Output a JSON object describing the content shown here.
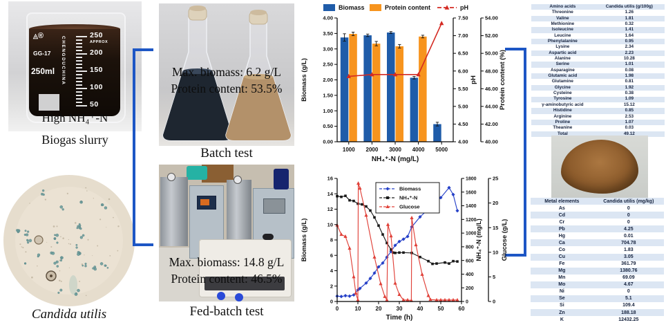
{
  "left_column": {
    "beaker": {
      "inner_label": "High NH₄⁺-N",
      "caption": "Biogas slurry",
      "volume": "250ml",
      "brand": "GG-17",
      "registered": "®",
      "vertical_text": "CHENGDUCHINA",
      "graduations": [
        {
          "label": "250",
          "sub": "APPROX"
        },
        {
          "label": "200",
          "sub": ""
        },
        {
          "label": "150",
          "sub": ""
        },
        {
          "label": "100",
          "sub": ""
        },
        {
          "label": "50",
          "sub": ""
        }
      ]
    },
    "microscopy": {
      "caption": "Candida utilis"
    }
  },
  "middle_column": {
    "batch": {
      "line1": "Max. biomass: 6.2 g/L",
      "line2": "Protein content: 53.5%",
      "caption": "Batch test"
    },
    "fed_batch": {
      "line1": "Max. biomass: 14.8 g/L",
      "line2": "Protein content: 46.5%",
      "caption": "Fed-batch test"
    }
  },
  "chart_data": [
    {
      "type": "bar",
      "categories": [
        "1000",
        "2000",
        "3000",
        "4000",
        "5000"
      ],
      "xlabel": "NH₄⁺-N (mg/L)",
      "legend_position": "top",
      "axes": {
        "left": {
          "label": "Biomass (g/L)",
          "min": 0,
          "max": 4,
          "step": 0.5
        },
        "ph": {
          "label": "pH",
          "min": 4,
          "max": 7.5,
          "step": 0.5
        },
        "protein": {
          "label": "Protein content (%)",
          "min": 40,
          "max": 54,
          "step": 2
        }
      },
      "series": [
        {
          "name": "Biomass",
          "type": "bar",
          "axis": "left",
          "color": "#1F5CA9",
          "values": [
            3.37,
            3.44,
            3.53,
            2.07,
            0.57
          ],
          "errors": [
            0.12,
            0.04,
            0.03,
            0.04,
            0.06
          ]
        },
        {
          "name": "Protein content",
          "type": "bar",
          "axis": "protein",
          "color": "#F7941E",
          "values": [
            52.2,
            51.1,
            50.8,
            51.9,
            null
          ],
          "errors": [
            0.2,
            0.25,
            0.2,
            0.15,
            null
          ]
        },
        {
          "name": "pH",
          "type": "line",
          "axis": "ph",
          "color": "#D42A22",
          "marker": "triangle",
          "values": [
            5.85,
            5.9,
            5.9,
            5.9,
            7.35
          ]
        }
      ]
    },
    {
      "type": "line",
      "xlabel": "Time (h)",
      "legend_position": "inside-top",
      "axes": {
        "x": {
          "min": 0,
          "max": 60,
          "step": 10
        },
        "left": {
          "label": "Biomass (g/L)",
          "min": 0,
          "max": 16,
          "step": 2
        },
        "nh4": {
          "label": "NH₄⁺-N (mg/L)",
          "min": 0,
          "max": 1800,
          "step": 200
        },
        "glucose": {
          "label": "Glucose (g/L)",
          "min": 0,
          "max": 25,
          "step": 5
        }
      },
      "series": [
        {
          "name": "Biomass",
          "axis": "left",
          "color": "#2641C8",
          "marker": "diamond",
          "points": [
            [
              0,
              0.7
            ],
            [
              2,
              0.65
            ],
            [
              4,
              0.75
            ],
            [
              6,
              0.7
            ],
            [
              8,
              0.85
            ],
            [
              10,
              1.5
            ],
            [
              11,
              1.7
            ],
            [
              14,
              2.4
            ],
            [
              16,
              3.0
            ],
            [
              18,
              3.7
            ],
            [
              20,
              4.5
            ],
            [
              22,
              5.0
            ],
            [
              24,
              5.75
            ],
            [
              26,
              6.5
            ],
            [
              28,
              7.3
            ],
            [
              30,
              7.8
            ],
            [
              32,
              8.1
            ],
            [
              34,
              8.45
            ],
            [
              36,
              9.7
            ],
            [
              40,
              11.0
            ],
            [
              44,
              12.0
            ],
            [
              46,
              12.6
            ],
            [
              50,
              13.5
            ],
            [
              54,
              14.8
            ],
            [
              56,
              13.9
            ],
            [
              58,
              11.8
            ]
          ]
        },
        {
          "name": "NH₄⁺-N",
          "axis": "nh4",
          "color": "#1A1A1A",
          "marker": "square",
          "points": [
            [
              0,
              1540
            ],
            [
              2,
              1530
            ],
            [
              4,
              1545
            ],
            [
              6,
              1480
            ],
            [
              8,
              1470
            ],
            [
              10,
              1430
            ],
            [
              12,
              1420
            ],
            [
              14,
              1390
            ],
            [
              16,
              1330
            ],
            [
              18,
              1230
            ],
            [
              20,
              1110
            ],
            [
              22,
              980
            ],
            [
              24,
              855
            ],
            [
              26,
              760
            ],
            [
              27,
              715
            ],
            [
              28,
              710
            ],
            [
              30,
              715
            ],
            [
              32,
              715
            ],
            [
              36,
              710
            ],
            [
              40,
              650
            ],
            [
              44,
              590
            ],
            [
              46,
              550
            ],
            [
              48,
              555
            ],
            [
              52,
              570
            ],
            [
              54,
              555
            ],
            [
              56,
              590
            ],
            [
              58,
              585
            ]
          ]
        },
        {
          "name": "Glucose",
          "axis": "glucose",
          "color": "#E04038",
          "marker": "triangle",
          "points": [
            [
              0,
              15.5
            ],
            [
              2,
              13.6
            ],
            [
              4,
              13.2
            ],
            [
              6,
              10.8
            ],
            [
              8,
              5.0
            ],
            [
              9,
              1.7
            ],
            [
              10,
              0.3
            ],
            [
              10.2,
              24.0
            ],
            [
              11,
              23.0
            ],
            [
              14,
              17.5
            ],
            [
              18,
              9.0
            ],
            [
              21,
              3.6
            ],
            [
              23,
              1.0
            ],
            [
              24,
              0.3
            ],
            [
              24.5,
              15.6
            ],
            [
              26,
              13.3
            ],
            [
              28,
              3.7
            ],
            [
              30,
              1.4
            ],
            [
              32,
              0.3
            ],
            [
              34,
              0.3
            ],
            [
              35.8,
              0.2
            ],
            [
              36,
              17.0
            ],
            [
              38,
              11.5
            ],
            [
              41,
              5.5
            ],
            [
              44,
              1.2
            ],
            [
              45,
              0.4
            ],
            [
              48,
              0.3
            ],
            [
              50,
              0.3
            ],
            [
              52,
              0.3
            ],
            [
              54,
              0.3
            ],
            [
              56,
              0.3
            ],
            [
              58,
              0.3
            ]
          ]
        }
      ]
    }
  ],
  "tables": {
    "amino_acids": {
      "headers": [
        "Amino acids",
        "Candida utilis  (g/100g)"
      ],
      "rows": [
        [
          "Threonine",
          "1.26"
        ],
        [
          "Valine",
          "1.81"
        ],
        [
          "Methionine",
          "0.32"
        ],
        [
          "Isoleucine",
          "1.41"
        ],
        [
          "Leucine",
          "1.64"
        ],
        [
          "Phenylalanine",
          "0.95"
        ],
        [
          "Lysine",
          "2.34"
        ],
        [
          "Aspartic acid",
          "2.23"
        ],
        [
          "Alanine",
          "10.28"
        ],
        [
          "Serine",
          "1.01"
        ],
        [
          "Asparagine",
          "0.08"
        ],
        [
          "Glutamic acid",
          "1.98"
        ],
        [
          "Glutamine",
          "0.81"
        ],
        [
          "Glycine",
          "1.92"
        ],
        [
          "Cysteine",
          "0.38"
        ],
        [
          "Tyrosine",
          "1.09"
        ],
        [
          "γ-aminobutyric acid",
          "15.12"
        ],
        [
          "Histidine",
          "0.85"
        ],
        [
          "Arginine",
          "2.53"
        ],
        [
          "Proline",
          "1.07"
        ],
        [
          "Theanine",
          "0.03"
        ],
        [
          "Total",
          "49.12"
        ]
      ]
    },
    "metals": {
      "headers": [
        "Metal elements",
        "Candida utilis (mg/kg)"
      ],
      "rows": [
        [
          "As",
          "0"
        ],
        [
          "Cd",
          "0"
        ],
        [
          "Cr",
          "0"
        ],
        [
          "Pb",
          "4.25"
        ],
        [
          "Hg",
          "0.01"
        ],
        [
          "Ca",
          "704.78"
        ],
        [
          "Co",
          "1.83"
        ],
        [
          "Cu",
          "3.05"
        ],
        [
          "Fe",
          "361.79"
        ],
        [
          "Mg",
          "1380.76"
        ],
        [
          "Mn",
          "69.09"
        ],
        [
          "Mo",
          "4.67"
        ],
        [
          "Ni",
          "0"
        ],
        [
          "Se",
          "5.1"
        ],
        [
          "Si",
          "109.4"
        ],
        [
          "Zn",
          "188.18"
        ],
        [
          "K",
          "12432.25"
        ]
      ]
    }
  },
  "colors": {
    "bracket_blue": "#1D56C5",
    "bar_blue": "#1F5CA9",
    "bar_orange": "#F7941E",
    "ph_red": "#D42A22",
    "line_blue": "#2641C8",
    "line_black": "#1A1A1A",
    "line_red": "#E04038",
    "table_stripe": "#DCE6F3"
  }
}
